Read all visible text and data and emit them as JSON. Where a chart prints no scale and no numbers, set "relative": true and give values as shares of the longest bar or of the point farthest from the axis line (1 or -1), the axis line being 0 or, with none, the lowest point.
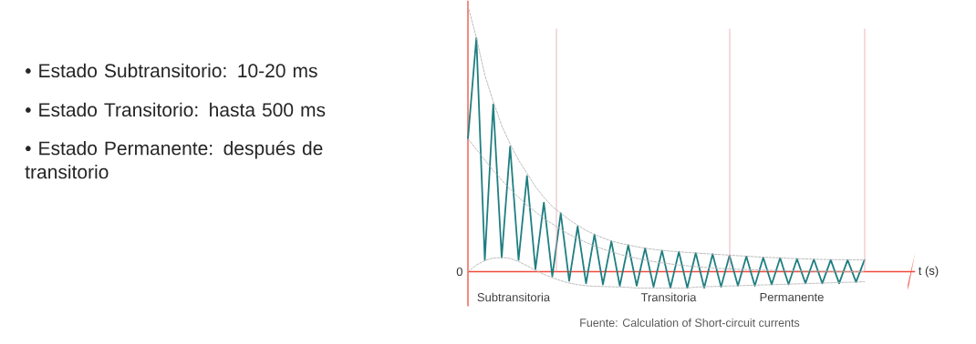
{
  "chart_data": {
    "type": "line",
    "relative": true,
    "xlabel": "t (s)",
    "line_style": "solid",
    "categories": [
      null,
      null,
      null,
      null,
      null,
      null,
      null,
      null,
      null,
      null,
      null,
      null,
      null,
      null,
      null,
      null,
      null,
      null,
      null,
      null,
      null,
      null,
      null,
      null,
      null,
      null,
      null,
      null,
      null,
      null,
      null,
      null,
      null,
      null,
      null,
      null,
      null,
      null,
      null,
      null,
      null,
      null,
      null,
      null,
      null,
      null,
      null,
      null
    ],
    "series": [
      {
        "color": "#1f7e80",
        "values": [
          0.5,
          0.88,
          0.044,
          0.63,
          0.053,
          0.47,
          0.044,
          0.36,
          0.009,
          0.26,
          -0.018,
          0.22,
          -0.035,
          0.17,
          -0.044,
          0.14,
          -0.048,
          0.114,
          -0.053,
          0.1,
          -0.053,
          0.088,
          -0.057,
          0.079,
          -0.061,
          0.075,
          -0.061,
          0.07,
          -0.061,
          0.066,
          -0.057,
          0.061,
          -0.053,
          0.057,
          -0.053,
          0.053,
          -0.048,
          0.051,
          -0.048,
          0.048,
          -0.044,
          0.046,
          -0.044,
          0.044,
          -0.044,
          0.044,
          -0.039,
          0.044
        ]
      },
      {
        "color": "#b4b4b4",
        "line_style": "dashed",
        "values": [
          1.0,
          0.88,
          0.74,
          0.64,
          0.55,
          0.48,
          0.42,
          0.37,
          0.32,
          0.28,
          0.245,
          0.22,
          0.195,
          0.175,
          0.155,
          0.14,
          0.127,
          0.115,
          0.107,
          0.1,
          0.094,
          0.088,
          0.084,
          0.08,
          0.077,
          0.075,
          0.072,
          0.07,
          0.068,
          0.066,
          0.064,
          0.062,
          0.06,
          0.058,
          0.056,
          0.054,
          0.053,
          0.052,
          0.05,
          0.049,
          0.048,
          0.047,
          0.046,
          0.045,
          0.045,
          0.045,
          0.044,
          0.044
        ]
      },
      {
        "color": "#b4b4b4",
        "line_style": "dashed",
        "values": [
          0.5,
          0.46,
          0.42,
          0.38,
          0.345,
          0.31,
          0.28,
          0.25,
          0.225,
          0.2,
          0.18,
          0.16,
          0.14,
          0.125,
          0.11,
          0.097,
          0.085,
          0.075,
          0.065,
          0.057,
          0.05,
          0.044,
          0.038,
          0.033,
          0.029,
          0.025,
          0.022,
          0.019,
          0.016,
          0.014,
          0.012,
          0.01,
          0.009,
          0.008,
          0.007,
          0.006,
          0.005,
          0.004,
          0.003,
          0.003,
          0.002,
          0.002,
          0.001,
          0.001,
          0.001,
          0,
          0,
          0
        ]
      },
      {
        "color": "#b4b4b4",
        "line_style": "dashed",
        "values": [
          0,
          0.025,
          0.042,
          0.051,
          0.053,
          0.05,
          0.038,
          0.022,
          0.005,
          -0.01,
          -0.023,
          -0.034,
          -0.043,
          -0.049,
          -0.053,
          -0.055,
          -0.056,
          -0.057,
          -0.058,
          -0.059,
          -0.062,
          -0.062,
          -0.062,
          -0.062,
          -0.062,
          -0.062,
          -0.062,
          -0.058,
          -0.057,
          -0.056,
          -0.055,
          -0.054,
          -0.053,
          -0.052,
          -0.051,
          -0.05,
          -0.049,
          -0.048,
          -0.047,
          -0.046,
          -0.045,
          -0.044,
          -0.043,
          -0.042,
          -0.041,
          -0.04,
          -0.039,
          -0.038
        ]
      }
    ],
    "ref_lines": [
      {
        "axis": "y",
        "value": 0,
        "color": "#f04a3a"
      }
    ],
    "annotations": [
      "• Estado Subtransitorio: 10-20 ms",
      "• Estado Transitorio: hasta 500 ms",
      "• Estado Permanente: después de transitorio",
      "0",
      "Subtransitoria",
      "Transitoria",
      "Permanente",
      "Fuente: Calculation of Short-circuit currents"
    ]
  }
}
